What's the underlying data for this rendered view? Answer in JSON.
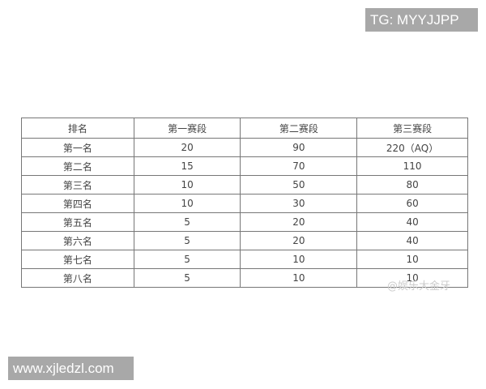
{
  "overlay": {
    "tg": "TG: MYYJJPP",
    "site": "www.xjledzl.com",
    "watermark": "@娱乐大金牙"
  },
  "table": {
    "headers": [
      "排名",
      "第一赛段",
      "第二赛段",
      "第三赛段"
    ],
    "rows": [
      [
        "第一名",
        "20",
        "90",
        "220（AQ）"
      ],
      [
        "第二名",
        "15",
        "70",
        "110"
      ],
      [
        "第三名",
        "10",
        "50",
        "80"
      ],
      [
        "第四名",
        "10",
        "30",
        "60"
      ],
      [
        "第五名",
        "5",
        "20",
        "40"
      ],
      [
        "第六名",
        "5",
        "20",
        "40"
      ],
      [
        "第七名",
        "5",
        "10",
        "10"
      ],
      [
        "第八名",
        "5",
        "10",
        "10"
      ]
    ]
  }
}
